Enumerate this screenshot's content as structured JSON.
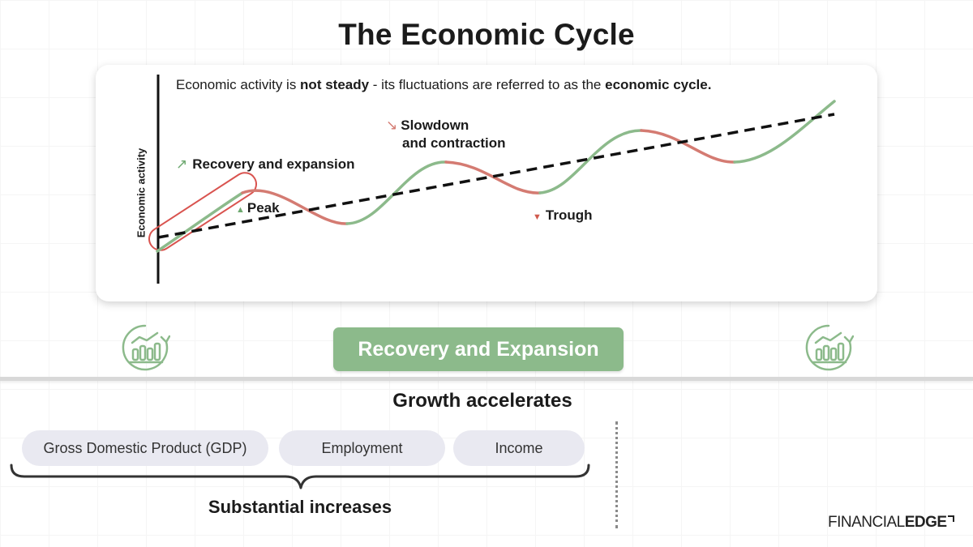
{
  "title": "The Economic Cycle",
  "intro": {
    "part1": "Economic activity is ",
    "bold1": "not steady",
    "part2": " - its fluctuations are referred to as the ",
    "bold2": "economic cycle."
  },
  "y_axis_label": "Economic activity",
  "annotations": {
    "recovery": "Recovery and expansion",
    "slowdown_line1": "Slowdown",
    "slowdown_line2": "and contraction",
    "peak": "Peak",
    "trough": "Trough"
  },
  "colors": {
    "expansion": "#8cba8b",
    "contraction": "#d47b72",
    "highlight": "#d9534f",
    "trend": "#111111"
  },
  "icons": {
    "left": "growth-chart-icon",
    "right": "growth-chart-icon"
  },
  "phase_button": "Recovery and Expansion",
  "growth_heading": "Growth accelerates",
  "indicators": [
    "Gross Domestic Product (GDP)",
    "Employment",
    "Income"
  ],
  "brace_label": "Substantial increases",
  "logo": {
    "light": "FINANCIAL",
    "bold": "EDGE"
  }
}
